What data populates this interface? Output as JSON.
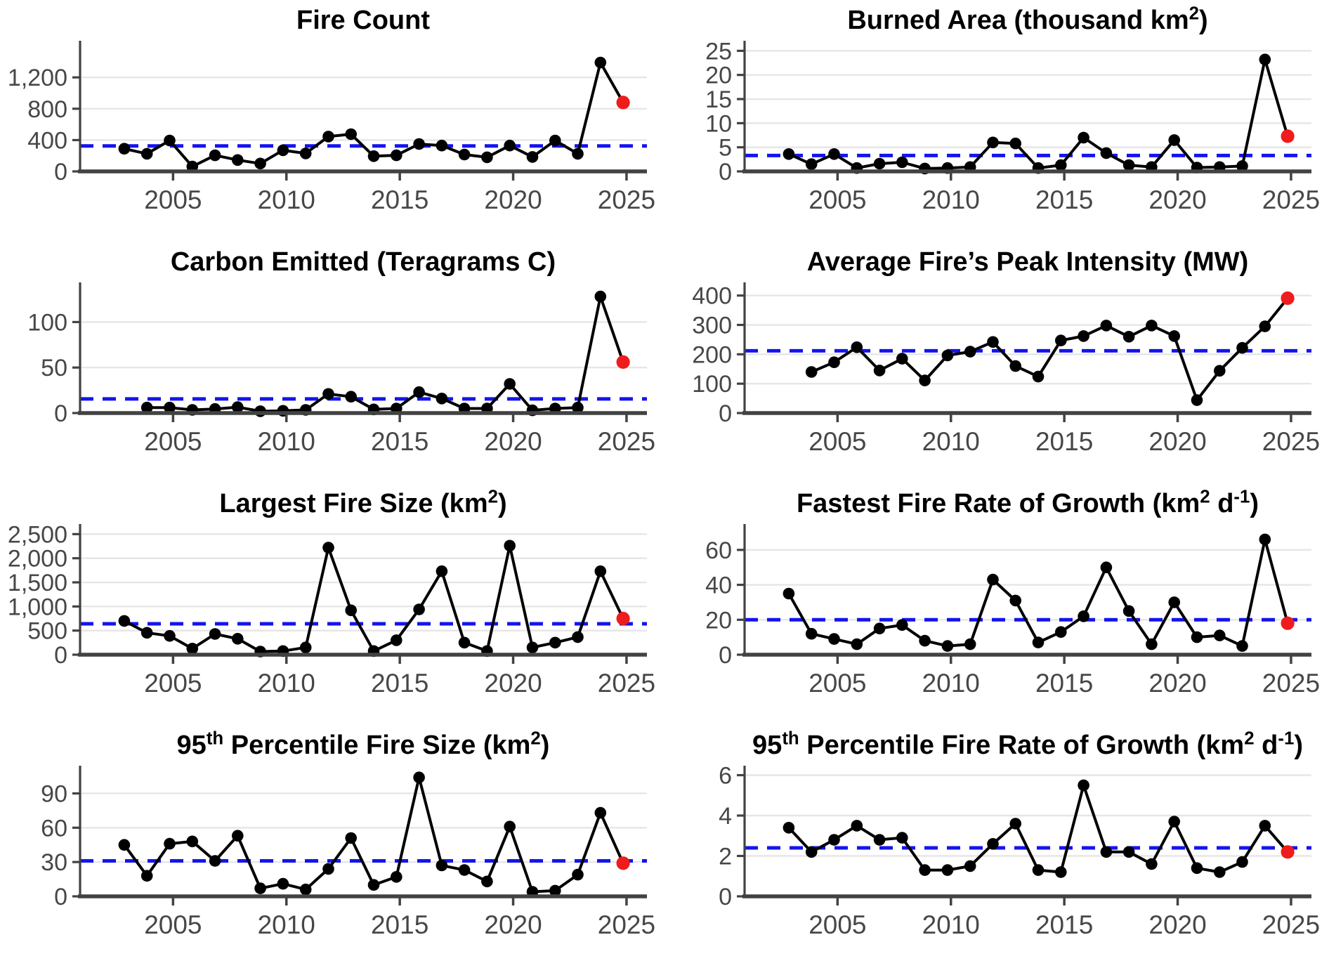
{
  "figure_title": "",
  "style": {
    "background": "#ffffff",
    "point_color": "#000000",
    "line_color": "#000000",
    "latest_point_color": "#ee1c1c",
    "mean_line_color": "#1414ee",
    "grid_color": "#e6e6e6",
    "axis_color": "#424242",
    "tick_label_color": "#474747",
    "title_color": "#000000"
  },
  "x_axis": {
    "ticks": [
      2005,
      2010,
      2015,
      2020,
      2025
    ],
    "tick_labels": [
      "2005",
      "2010",
      "2015",
      "2020",
      "2025"
    ]
  },
  "chart_data": [
    {
      "id": "fire-count",
      "type": "line",
      "title": "Fire Count",
      "title_segments": [
        {
          "text": "Fire Count"
        }
      ],
      "years": [
        2003,
        2004,
        2005,
        2006,
        2007,
        2008,
        2009,
        2010,
        2011,
        2012,
        2013,
        2014,
        2015,
        2016,
        2017,
        2018,
        2019,
        2020,
        2021,
        2022,
        2023,
        2024
      ],
      "values": [
        290,
        225,
        395,
        62,
        205,
        145,
        100,
        270,
        230,
        445,
        475,
        195,
        205,
        350,
        330,
        215,
        180,
        330,
        185,
        395,
        225,
        1390
      ],
      "latest": {
        "year": 2025,
        "value": 880
      },
      "mean_line": 325,
      "y_ticks": [
        0,
        400,
        800,
        1200
      ],
      "y_tick_labels": [
        "0",
        "400",
        "800",
        "1,200"
      ],
      "ylim": [
        0,
        1650
      ],
      "legend": "none",
      "grid": "horizontal"
    },
    {
      "id": "burned-area",
      "type": "line",
      "title": "Burned Area (thousand km2)",
      "title_segments": [
        {
          "text": "Burned Area (thousand km"
        },
        {
          "text": "2",
          "sup": true
        },
        {
          "text": ")"
        }
      ],
      "years": [
        2003,
        2004,
        2005,
        2006,
        2007,
        2008,
        2009,
        2010,
        2011,
        2012,
        2013,
        2014,
        2015,
        2016,
        2017,
        2018,
        2019,
        2020,
        2021,
        2022,
        2023,
        2024
      ],
      "values": [
        3.6,
        1.5,
        3.6,
        0.7,
        1.6,
        1.9,
        0.6,
        0.7,
        0.9,
        6.0,
        5.8,
        0.7,
        1.3,
        7.0,
        3.8,
        1.3,
        0.9,
        6.5,
        0.8,
        0.9,
        1.1,
        23.2
      ],
      "latest": {
        "year": 2025,
        "value": 7.3
      },
      "mean_line": 3.3,
      "y_ticks": [
        0,
        5,
        10,
        15,
        20,
        25
      ],
      "y_tick_labels": [
        "0",
        "5",
        "10",
        "15",
        "20",
        "25"
      ],
      "ylim": [
        0,
        26.8
      ],
      "legend": "none",
      "grid": "horizontal"
    },
    {
      "id": "carbon-emitted",
      "type": "line",
      "title": "Carbon Emitted (Teragrams C)",
      "title_segments": [
        {
          "text": "Carbon Emitted (Teragrams C)"
        }
      ],
      "years": [
        2004,
        2005,
        2006,
        2007,
        2008,
        2009,
        2010,
        2011,
        2012,
        2013,
        2014,
        2015,
        2016,
        2017,
        2018,
        2019,
        2020,
        2021,
        2022,
        2023,
        2024
      ],
      "values": [
        6,
        6,
        3.5,
        4.5,
        6.5,
        2,
        2.5,
        3.5,
        21,
        18,
        4,
        5,
        23,
        16,
        5,
        5,
        32,
        3,
        5,
        6,
        128
      ],
      "latest": {
        "year": 2025,
        "value": 56
      },
      "mean_line": 15.5,
      "y_ticks": [
        0,
        50,
        100
      ],
      "y_tick_labels": [
        "0",
        "50",
        "100"
      ],
      "ylim": [
        0,
        142
      ],
      "legend": "none",
      "grid": "horizontal"
    },
    {
      "id": "peak-intensity",
      "type": "line",
      "title": "Average Fire’s Peak Intensity (MW)",
      "title_segments": [
        {
          "text": "Average Fire’s Peak Intensity (MW)"
        }
      ],
      "years": [
        2004,
        2005,
        2006,
        2007,
        2008,
        2009,
        2010,
        2011,
        2012,
        2013,
        2014,
        2015,
        2016,
        2017,
        2018,
        2019,
        2020,
        2021,
        2022,
        2023,
        2024
      ],
      "values": [
        140,
        173,
        224,
        145,
        185,
        111,
        196,
        209,
        242,
        160,
        124,
        247,
        262,
        298,
        260,
        298,
        262,
        44,
        144,
        222,
        295
      ],
      "latest": {
        "year": 2025,
        "value": 391
      },
      "mean_line": 212,
      "y_ticks": [
        0,
        100,
        200,
        300,
        400
      ],
      "y_tick_labels": [
        "0",
        "100",
        "200",
        "300",
        "400"
      ],
      "ylim": [
        0,
        440
      ],
      "legend": "none",
      "grid": "horizontal"
    },
    {
      "id": "largest-fire-size",
      "type": "line",
      "title": "Largest Fire Size (km2)",
      "title_segments": [
        {
          "text": "Largest Fire Size (km"
        },
        {
          "text": "2",
          "sup": true
        },
        {
          "text": ")"
        }
      ],
      "years": [
        2003,
        2004,
        2005,
        2006,
        2007,
        2008,
        2009,
        2010,
        2011,
        2012,
        2013,
        2014,
        2015,
        2016,
        2017,
        2018,
        2019,
        2020,
        2021,
        2022,
        2023,
        2024
      ],
      "values": [
        700,
        455,
        390,
        126,
        430,
        330,
        66,
        76,
        150,
        2220,
        920,
        76,
        300,
        940,
        1730,
        250,
        76,
        2260,
        150,
        250,
        365,
        1730
      ],
      "latest": {
        "year": 2025,
        "value": 750
      },
      "mean_line": 640,
      "y_ticks": [
        0,
        500,
        1000,
        1500,
        2000,
        2500
      ],
      "y_tick_labels": [
        "0",
        "500",
        "1,000",
        "1,500",
        "2,000",
        "2,500"
      ],
      "ylim": [
        0,
        2680
      ],
      "legend": "none",
      "grid": "horizontal"
    },
    {
      "id": "fastest-growth",
      "type": "line",
      "title": "Fastest Fire Rate of Growth (km2 d-1)",
      "title_segments": [
        {
          "text": "Fastest Fire Rate of Growth (km"
        },
        {
          "text": "2",
          "sup": true
        },
        {
          "text": " d"
        },
        {
          "text": "-1",
          "sup": true
        },
        {
          "text": ")"
        }
      ],
      "years": [
        2003,
        2004,
        2005,
        2006,
        2007,
        2008,
        2009,
        2010,
        2011,
        2012,
        2013,
        2014,
        2015,
        2016,
        2017,
        2018,
        2019,
        2020,
        2021,
        2022,
        2023,
        2024
      ],
      "values": [
        35,
        12,
        9,
        6,
        15,
        17,
        8,
        5,
        6,
        43,
        31,
        7,
        13,
        22,
        50,
        25,
        6,
        30,
        10,
        11,
        5,
        66
      ],
      "latest": {
        "year": 2025,
        "value": 18
      },
      "mean_line": 20,
      "y_ticks": [
        0,
        20,
        40,
        60
      ],
      "y_tick_labels": [
        "0",
        "20",
        "40",
        "60"
      ],
      "ylim": [
        0,
        74
      ],
      "legend": "none",
      "grid": "horizontal"
    },
    {
      "id": "p95-fire-size",
      "type": "line",
      "title": "95th Percentile Fire Size (km2)",
      "title_segments": [
        {
          "text": "95"
        },
        {
          "text": "th",
          "sup": true
        },
        {
          "text": " Percentile Fire Size (km"
        },
        {
          "text": "2",
          "sup": true
        },
        {
          "text": ")"
        }
      ],
      "years": [
        2003,
        2004,
        2005,
        2006,
        2007,
        2008,
        2009,
        2010,
        2011,
        2012,
        2013,
        2014,
        2015,
        2016,
        2017,
        2018,
        2019,
        2020,
        2021,
        2022,
        2023,
        2024
      ],
      "values": [
        45,
        18,
        46,
        48,
        31,
        53,
        7,
        11,
        6,
        24,
        51,
        10,
        17,
        104,
        27,
        23,
        13,
        61,
        4,
        5,
        19,
        73
      ],
      "latest": {
        "year": 2025,
        "value": 29
      },
      "mean_line": 31,
      "y_ticks": [
        0,
        30,
        60,
        90
      ],
      "y_tick_labels": [
        "0",
        "30",
        "60",
        "90"
      ],
      "ylim": [
        0,
        113
      ],
      "legend": "none",
      "grid": "horizontal"
    },
    {
      "id": "p95-growth",
      "type": "line",
      "title": "95th Percentile Fire Rate of Growth (km2 d-1)",
      "title_segments": [
        {
          "text": "95"
        },
        {
          "text": "th",
          "sup": true
        },
        {
          "text": " Percentile Fire Rate of Growth (km"
        },
        {
          "text": "2",
          "sup": true
        },
        {
          "text": " d"
        },
        {
          "text": "-1",
          "sup": true
        },
        {
          "text": ")"
        }
      ],
      "years": [
        2003,
        2004,
        2005,
        2006,
        2007,
        2008,
        2009,
        2010,
        2011,
        2012,
        2013,
        2014,
        2015,
        2016,
        2017,
        2018,
        2019,
        2020,
        2021,
        2022,
        2023,
        2024
      ],
      "values": [
        3.4,
        2.2,
        2.8,
        3.5,
        2.8,
        2.9,
        1.3,
        1.3,
        1.5,
        2.6,
        3.6,
        1.3,
        1.2,
        5.5,
        2.2,
        2.2,
        1.6,
        3.7,
        1.4,
        1.2,
        1.7,
        3.5
      ],
      "latest": {
        "year": 2025,
        "value": 2.2
      },
      "mean_line": 2.4,
      "y_ticks": [
        0,
        2,
        4,
        6
      ],
      "y_tick_labels": [
        "0",
        "2",
        "4",
        "6"
      ],
      "ylim": [
        0,
        6.4
      ],
      "legend": "none",
      "grid": "horizontal"
    }
  ]
}
